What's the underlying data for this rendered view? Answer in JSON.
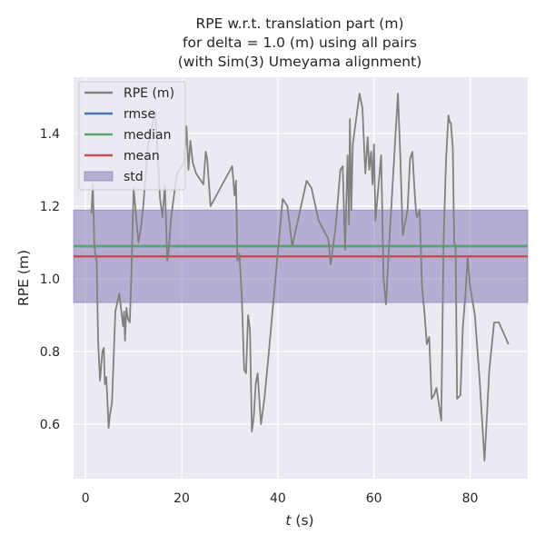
{
  "chart_data": {
    "type": "line",
    "title_lines": [
      "RPE w.r.t. translation part (m)",
      "for delta = 1.0 (m) using all pairs",
      "(with Sim(3) Umeyama alignment)"
    ],
    "xlabel": "t (s)",
    "xlabel_var": "t",
    "xlabel_unit": " (s)",
    "ylabel": "RPE (m)",
    "xlim": [
      -2.5,
      92.0
    ],
    "ylim": [
      0.45,
      1.555
    ],
    "xticks": [
      0,
      20,
      40,
      60,
      80
    ],
    "yticks": [
      0.6,
      0.8,
      1.0,
      1.2,
      1.4
    ],
    "ytick_labels": [
      "0.6",
      "0.8",
      "1.0",
      "1.2",
      "1.4"
    ],
    "grid": true,
    "legend_placement": "top-left",
    "legend": [
      {
        "label": "RPE (m)",
        "color": "#808080",
        "kind": "line"
      },
      {
        "label": "rmse",
        "color": "#4c72b0",
        "kind": "line"
      },
      {
        "label": "median",
        "color": "#55a868",
        "kind": "line"
      },
      {
        "label": "mean",
        "color": "#c44e52",
        "kind": "line"
      },
      {
        "label": "std",
        "color": "#8172b2",
        "kind": "patch"
      }
    ],
    "stats": {
      "rmse": 1.09,
      "median": 1.09,
      "mean": 1.062,
      "std_lower": 0.935,
      "std_upper": 1.189
    },
    "series": [
      {
        "name": "RPE (m)",
        "color": "#808080",
        "x": [
          1.2,
          1.5,
          1.8,
          2.0,
          2.3,
          2.6,
          3.0,
          3.5,
          3.8,
          4.0,
          4.3,
          4.5,
          4.8,
          5.0,
          5.5,
          6.2,
          7.0,
          7.8,
          8.0,
          8.2,
          8.5,
          8.8,
          9.2,
          9.5,
          10.0,
          11.0,
          11.5,
          12.0,
          13.0,
          14.5,
          15.5,
          16.0,
          16.5,
          17.0,
          17.3,
          17.8,
          19.0,
          20.5,
          21.0,
          21.4,
          21.8,
          22.3,
          23.0,
          24.5,
          25.0,
          25.3,
          26.0,
          30.5,
          31.0,
          31.3,
          31.6,
          32.0,
          32.5,
          33.0,
          33.4,
          33.8,
          34.2,
          34.6,
          35.0,
          35.4,
          35.8,
          36.5,
          37.2,
          38.0,
          41.0,
          42.0,
          43.0,
          46.0,
          47.0,
          48.5,
          50.5,
          51.0,
          52.0,
          53.0,
          53.5,
          54.0,
          54.5,
          54.8,
          55.0,
          55.3,
          55.6,
          56.0,
          57.0,
          57.6,
          58.2,
          58.7,
          59.0,
          59.4,
          59.7,
          60.0,
          60.3,
          61.5,
          62.0,
          62.5,
          63.0,
          64.5,
          65.0,
          65.5,
          66.0,
          67.0,
          67.5,
          68.0,
          68.5,
          68.8,
          69.0,
          69.5,
          70.0,
          70.5,
          71.0,
          71.5,
          72.0,
          72.5,
          73.0,
          74.0,
          74.5,
          75.0,
          75.5,
          75.8,
          76.0,
          76.4,
          76.7,
          77.0,
          77.3,
          78.0,
          78.5,
          79.0,
          79.5,
          80.0,
          81.0,
          82.0,
          83.0,
          83.5,
          84.0,
          85.0,
          86.0,
          87.0,
          88.0
        ],
        "y": [
          1.18,
          1.26,
          1.1,
          1.07,
          1.05,
          0.83,
          0.72,
          0.8,
          0.81,
          0.71,
          0.73,
          0.68,
          0.59,
          0.62,
          0.66,
          0.91,
          0.96,
          0.87,
          0.91,
          0.83,
          0.92,
          0.89,
          0.88,
          1.0,
          1.25,
          1.1,
          1.14,
          1.2,
          1.37,
          1.46,
          1.22,
          1.17,
          1.26,
          1.05,
          1.08,
          1.17,
          1.29,
          1.32,
          1.42,
          1.3,
          1.38,
          1.32,
          1.29,
          1.26,
          1.35,
          1.33,
          1.2,
          1.31,
          1.23,
          1.27,
          1.05,
          1.07,
          0.95,
          0.75,
          0.74,
          0.9,
          0.86,
          0.58,
          0.62,
          0.71,
          0.74,
          0.6,
          0.67,
          0.78,
          1.22,
          1.2,
          1.09,
          1.27,
          1.25,
          1.16,
          1.11,
          1.04,
          1.14,
          1.3,
          1.31,
          1.08,
          1.34,
          1.15,
          1.44,
          1.19,
          1.37,
          1.41,
          1.51,
          1.47,
          1.29,
          1.39,
          1.3,
          1.35,
          1.26,
          1.37,
          1.16,
          1.34,
          1.0,
          0.93,
          1.06,
          1.4,
          1.51,
          1.33,
          1.12,
          1.19,
          1.33,
          1.35,
          1.23,
          1.18,
          1.17,
          1.19,
          0.98,
          0.91,
          0.82,
          0.84,
          0.67,
          0.68,
          0.7,
          0.61,
          1.11,
          1.33,
          1.45,
          1.43,
          1.43,
          1.36,
          1.1,
          1.09,
          0.67,
          0.68,
          0.87,
          0.95,
          1.06,
          0.98,
          0.9,
          0.72,
          0.5,
          0.62,
          0.75,
          0.88,
          0.88,
          0.85,
          0.82
        ]
      }
    ]
  }
}
